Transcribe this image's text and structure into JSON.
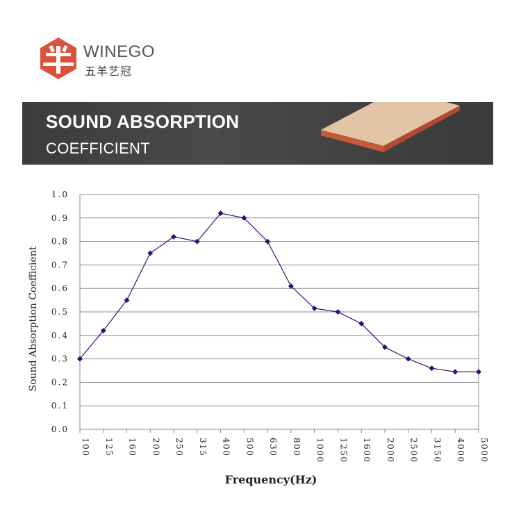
{
  "brand": {
    "name": "WINEGO",
    "subtitle": "五羊艺冠"
  },
  "banner": {
    "title": "SOUND ABSORPTION",
    "subtitle": "COEFFICIENT"
  },
  "chart_data": {
    "type": "line",
    "x_label": "Frequency(Hz)",
    "y_label": "Sound Absorption Coefficient",
    "categories": [
      "100",
      "125",
      "160",
      "200",
      "250",
      "315",
      "400",
      "500",
      "630",
      "800",
      "1000",
      "1250",
      "1600",
      "2000",
      "2500",
      "3150",
      "4000",
      "5000"
    ],
    "values": [
      0.3,
      0.42,
      0.55,
      0.75,
      0.82,
      0.8,
      0.92,
      0.9,
      0.8,
      0.61,
      0.515,
      0.5,
      0.45,
      0.35,
      0.3,
      0.26,
      0.245,
      0.245
    ],
    "color": "#1a1a7a",
    "ylim": [
      0,
      1
    ],
    "yticks": [
      {
        "value": 0,
        "label": "0.0"
      },
      0.1,
      0.2,
      0.3,
      0.4,
      0.5,
      0.6,
      0.7,
      0.8,
      0.9,
      {
        "value": 1,
        "label": "1.0"
      }
    ],
    "grid": true
  }
}
